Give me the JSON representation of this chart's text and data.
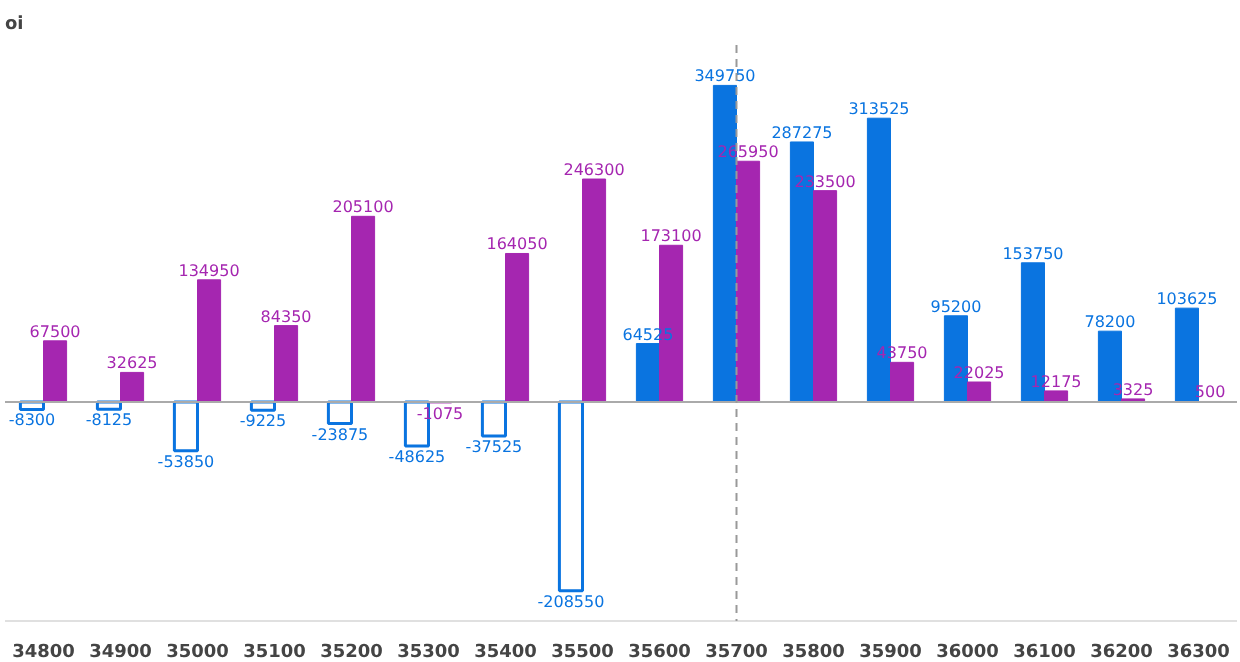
{
  "chart_data": {
    "type": "bar",
    "title": "oi",
    "categories": [
      "34800",
      "34900",
      "35000",
      "35100",
      "35200",
      "35300",
      "35400",
      "35500",
      "35600",
      "35700",
      "35800",
      "35900",
      "36000",
      "36100",
      "36200",
      "36300"
    ],
    "series": [
      {
        "color": "#0a74e0",
        "values": [
          -8300,
          -8125,
          -53850,
          -9225,
          -23875,
          -48625,
          -37525,
          -208550,
          64525,
          349750,
          287275,
          313525,
          95200,
          153750,
          78200,
          103625
        ]
      },
      {
        "color": "#a526b0",
        "values": [
          67500,
          32625,
          134950,
          84350,
          205100,
          -1075,
          164050,
          246300,
          173100,
          265950,
          233500,
          43750,
          22025,
          12175,
          3325,
          500
        ]
      }
    ],
    "data_labels": true,
    "ref_lines": [
      {
        "axis": "x",
        "value": "35700",
        "color": "#999999",
        "line_style": "dashed"
      }
    ],
    "grid": false
  }
}
